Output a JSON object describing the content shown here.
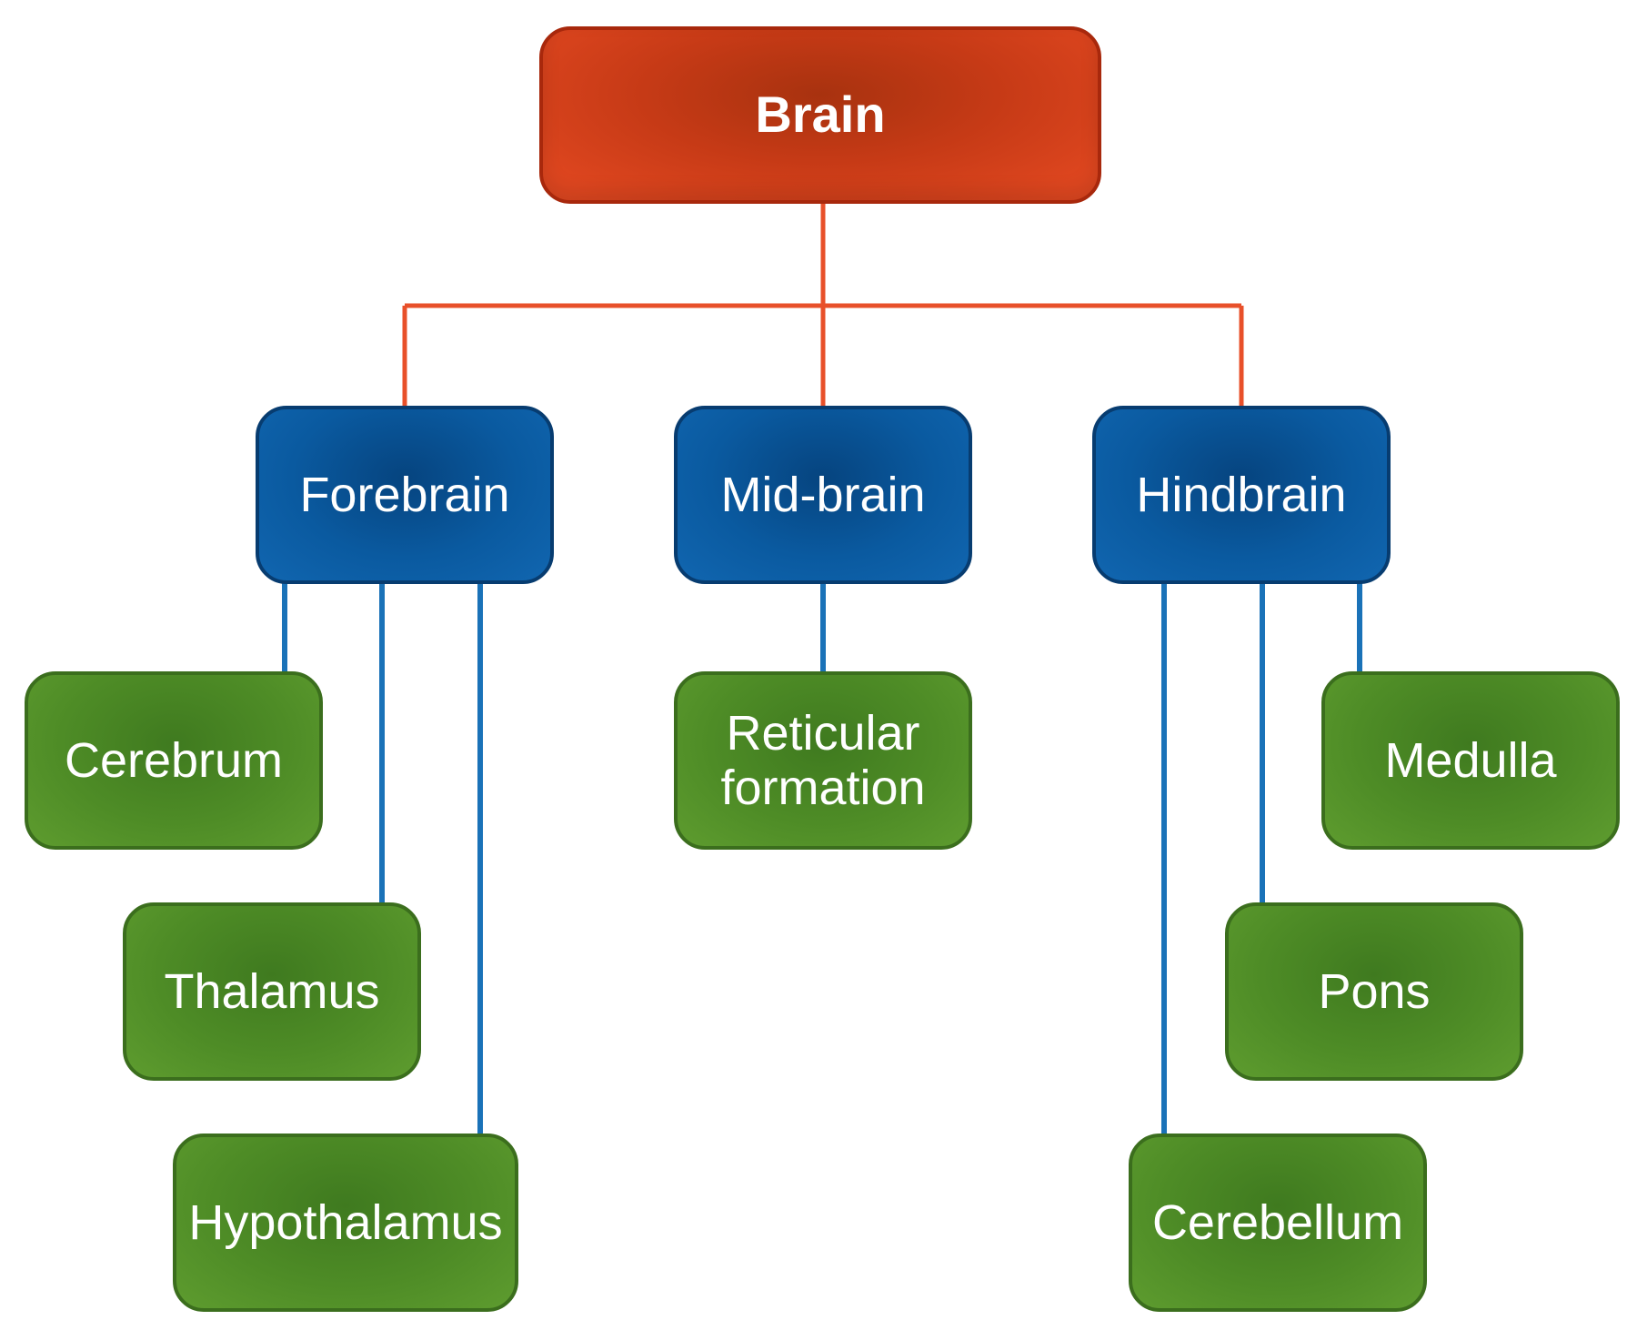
{
  "root": {
    "label": "Brain"
  },
  "branches": [
    {
      "label": "Forebrain",
      "children": [
        "Cerebrum",
        "Thalamus",
        "Hypothalamus"
      ]
    },
    {
      "label": "Mid-brain",
      "children": [
        [
          "Reticular",
          "formation"
        ]
      ]
    },
    {
      "label": "Hindbrain",
      "children": [
        "Medulla",
        "Pons",
        "Cerebellum"
      ]
    }
  ],
  "colors": {
    "root": "#e64a22",
    "root_connector": "#e8502a",
    "branch": "#0a5aa0",
    "branch_connector": "#1a72b8",
    "leaf": "#4e8c26"
  }
}
